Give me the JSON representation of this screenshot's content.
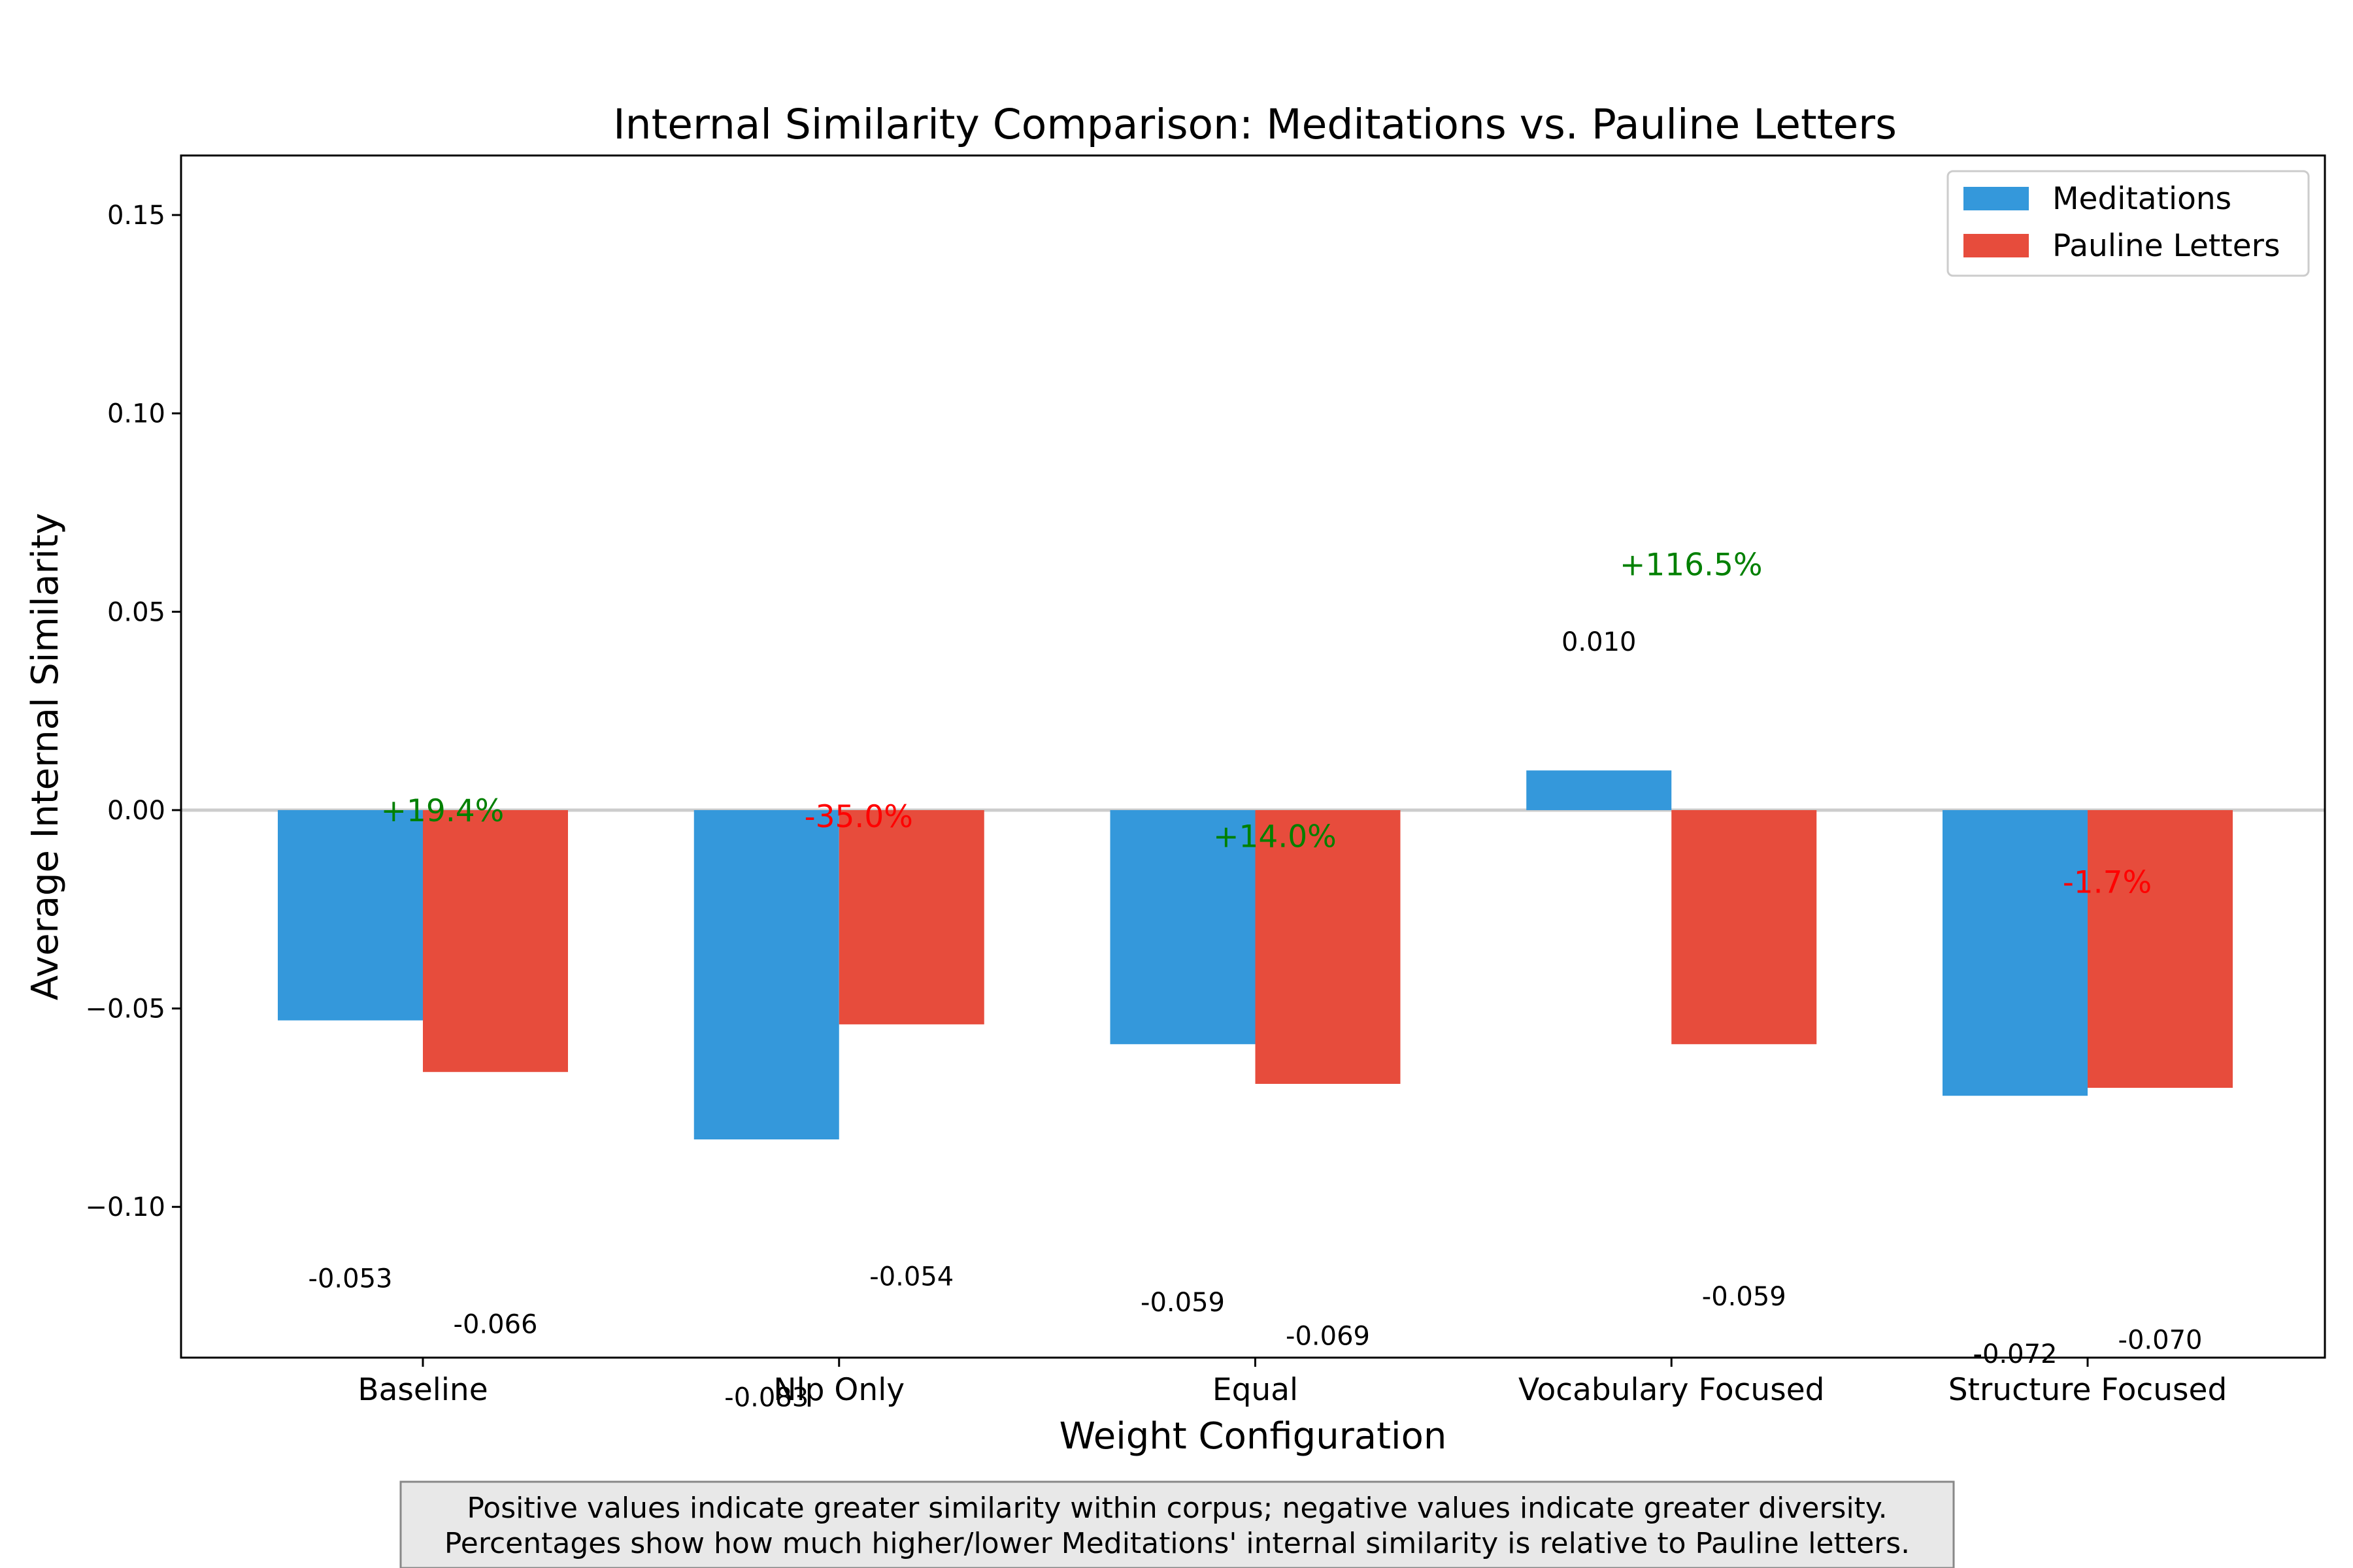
{
  "chart_data": {
    "type": "bar",
    "title": "Internal Similarity Comparison: Meditations vs. Pauline Letters",
    "xlabel": "Weight Configuration",
    "ylabel": "Average Internal Similarity",
    "categories": [
      "Baseline",
      "Nlp Only",
      "Equal",
      "Vocabulary Focused",
      "Structure Focused"
    ],
    "series": [
      {
        "name": "Meditations",
        "color": "#3498db",
        "values": [
          -0.053,
          -0.083,
          -0.059,
          0.01,
          -0.072
        ],
        "labels": [
          "-0.053",
          "-0.083",
          "-0.059",
          "0.010",
          "-0.072"
        ]
      },
      {
        "name": "Pauline Letters",
        "color": "#e74c3c",
        "values": [
          -0.066,
          -0.054,
          -0.069,
          -0.059,
          -0.07
        ],
        "labels": [
          "-0.066",
          "-0.054",
          "-0.069",
          "-0.059",
          "-0.070"
        ]
      }
    ],
    "percent_diff": [
      {
        "label": "+19.4%",
        "color": "#008000",
        "y": 0.0
      },
      {
        "label": "-35.0%",
        "color": "#ff0000",
        "y": -0.0015
      },
      {
        "label": "+14.0%",
        "color": "#008000",
        "y": -0.0065
      },
      {
        "label": "+116.5%",
        "color": "#008000",
        "y": 0.062
      },
      {
        "label": "-1.7%",
        "color": "#ff0000",
        "y": -0.018
      }
    ],
    "ylim": [
      -0.138,
      0.165
    ],
    "yticks": [
      -0.1,
      -0.05,
      0.0,
      0.05,
      0.1,
      0.15
    ],
    "ytick_labels": [
      "−0.10",
      "−0.05",
      "0.00",
      "0.05",
      "0.10",
      "0.15"
    ],
    "zero_line": true,
    "grid": false,
    "legend_position": "top-right"
  },
  "note": {
    "line1": "Positive values indicate greater similarity within corpus; negative values indicate greater diversity.",
    "line2": "Percentages show how much higher/lower Meditations' internal similarity is relative to Pauline letters."
  }
}
